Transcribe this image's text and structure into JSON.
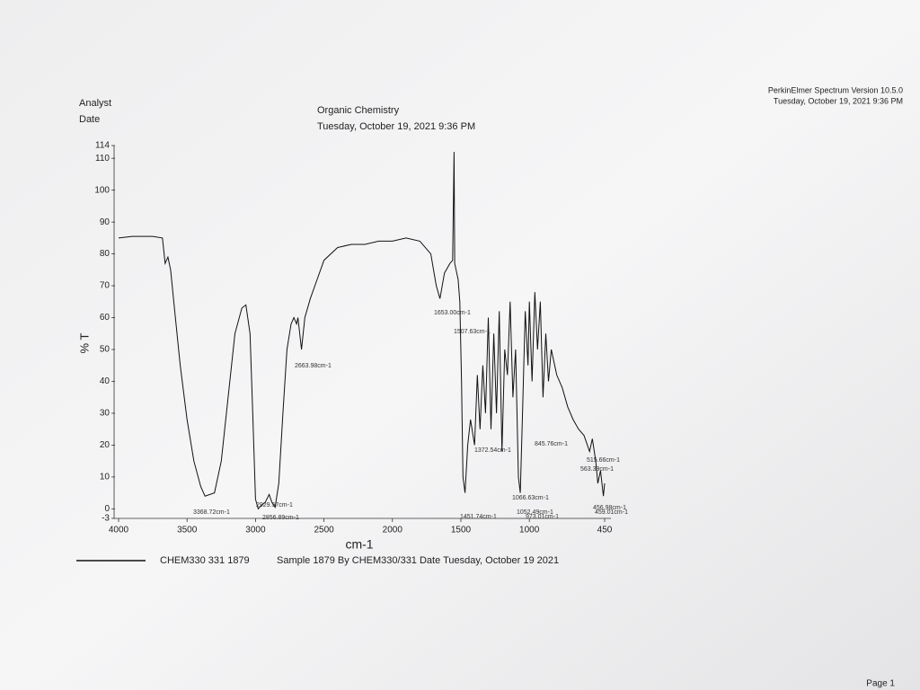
{
  "header": {
    "analyst": "Analyst",
    "date": "Date",
    "course": "Organic Chemistry",
    "timestamp": "Tuesday, October 19, 2021 9:36 PM",
    "software": "PerkinElmer Spectrum Version 10.5.0",
    "software_timestamp": "Tuesday, October 19, 2021 9:36 PM"
  },
  "footer": {
    "page": "Page 1"
  },
  "chart_data": {
    "type": "line",
    "xlabel": "cm-1",
    "ylabel": "% T",
    "subtitle": "Sample 1879 By CHEM330/331 Date Tuesday, October 19 2021",
    "xlim": [
      4000,
      450
    ],
    "ylim": [
      -3,
      114
    ],
    "xticks": [
      4000,
      3500,
      3000,
      2500,
      2000,
      1500,
      1000,
      450
    ],
    "yticks": [
      -3,
      0,
      10,
      20,
      30,
      40,
      50,
      60,
      70,
      80,
      90,
      100,
      110,
      114
    ],
    "x": [
      4000,
      3900,
      3750,
      3680,
      3660,
      3640,
      3620,
      3590,
      3550,
      3500,
      3450,
      3400,
      3368.72,
      3300,
      3250,
      3200,
      3150,
      3100,
      3070,
      3040,
      3020,
      3000,
      2980,
      2960,
      2929.57,
      2900,
      2880,
      2856.89,
      2830,
      2800,
      2770,
      2740,
      2720,
      2700,
      2690,
      2663.98,
      2640,
      2600,
      2550,
      2500,
      2400,
      2300,
      2200,
      2100,
      2000,
      1900,
      1800,
      1720,
      1680,
      1653,
      1620,
      1580,
      1560,
      1550,
      1545,
      1520,
      1507.63,
      1495,
      1485,
      1470,
      1450,
      1430,
      1400,
      1380,
      1360,
      1340,
      1320,
      1300,
      1280,
      1260,
      1240,
      1220,
      1200,
      1180,
      1160,
      1140,
      1120,
      1100,
      1080,
      1066,
      1050,
      1030,
      1010,
      1000,
      980,
      960,
      940,
      920,
      900,
      880,
      860,
      840,
      800,
      760,
      720,
      680,
      640,
      600,
      560,
      540,
      515,
      500,
      480,
      459,
      450
    ],
    "series": [
      {
        "name": "CHEM330 331 1879",
        "color": "#111111",
        "values": [
          85,
          85.5,
          85.5,
          85,
          77,
          79,
          75,
          62,
          45,
          28,
          15,
          7,
          4,
          5,
          15,
          35,
          55,
          63,
          64,
          55,
          30,
          3,
          0,
          1,
          2,
          4.5,
          2,
          0.5,
          8,
          30,
          50,
          58,
          60,
          58,
          60,
          50,
          60,
          66,
          72,
          78,
          82,
          83,
          83,
          84,
          84,
          85,
          84,
          80,
          70,
          66,
          74,
          77,
          78,
          112,
          77,
          72,
          65,
          40,
          10,
          5,
          20,
          28,
          20,
          42,
          25,
          45,
          30,
          60,
          25,
          55,
          30,
          62,
          18,
          50,
          42,
          65,
          35,
          50,
          10,
          5,
          30,
          62,
          45,
          65,
          40,
          68,
          50,
          65,
          35,
          55,
          40,
          50,
          42,
          38,
          32,
          28,
          25,
          23,
          18,
          22,
          15,
          8,
          12,
          4,
          8
        ]
      }
    ],
    "annotations": [
      "3368.72cm-1",
      "2929.57cm-1",
      "2856.89cm-1",
      "2663.98cm-1",
      "1653.00cm-1",
      "1507.63cm-1",
      "1372.54cm-1",
      "845.76cm-1",
      "1066.63cm-1",
      "1052.49cm-1",
      "973.01cm-1",
      "515.66cm-1",
      "563.39cm-1",
      "456.98cm-1",
      "459.01cm-1",
      "1451.74cm-1"
    ]
  }
}
